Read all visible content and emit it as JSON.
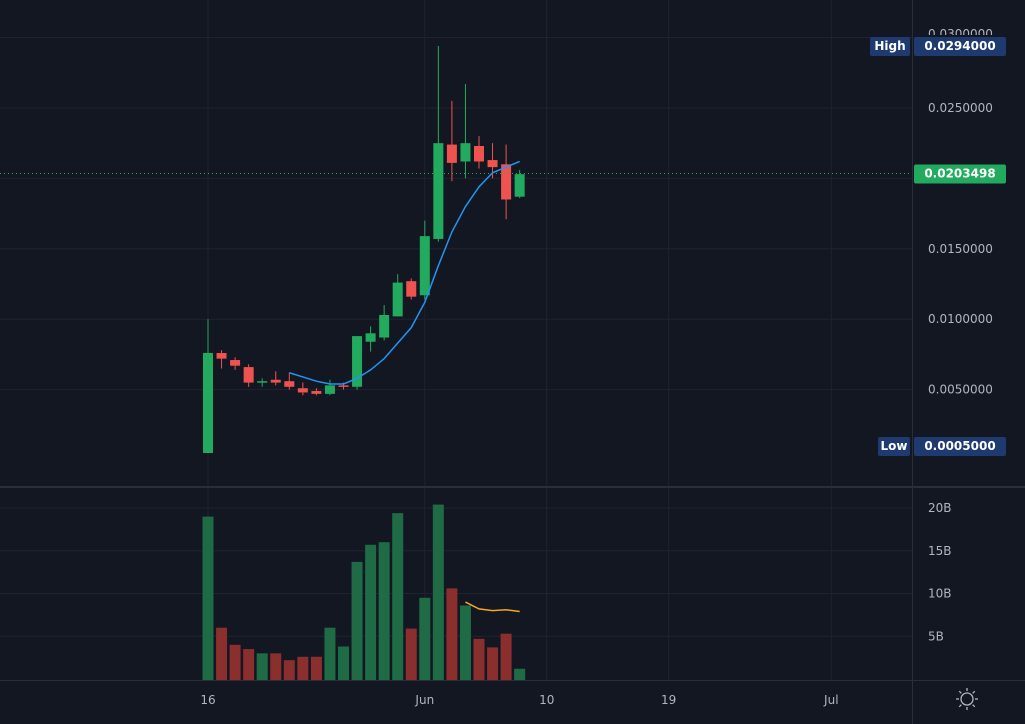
{
  "colors": {
    "background": "#131722",
    "grid": "#1f2230",
    "axis_border": "#2a2e39",
    "up": "#26a69a",
    "up_body": "#22ab5e",
    "down": "#ef5350",
    "vol_up": "#1e6b46",
    "vol_down": "#8a2e2e",
    "ma_price": "#2196f3",
    "ma_volume": "#f5a623",
    "label_bg": "#1e3a6e",
    "last_price_bg": "#22ab5e",
    "last_price_line": "#22ab5e"
  },
  "icons": {
    "settings": "sun-settings-icon"
  },
  "chart_data": [
    {
      "type": "candlestick",
      "name": "price",
      "ylim": [
        0.0,
        0.03
      ],
      "y_ticks": [
        "0.0050000",
        "0.0100000",
        "0.0150000",
        "0.0250000"
      ],
      "top_tick_partial": "0.0300000",
      "high_label": "High",
      "high_value": "0.0294000",
      "low_label": "Low",
      "low_value": "0.0005000",
      "last_price": "0.0203498",
      "last_price_value": 0.0203498,
      "x_ticks": [
        {
          "label": "16",
          "day": 0
        },
        {
          "label": "Jun",
          "day": 16
        },
        {
          "label": "10",
          "day": 25
        },
        {
          "label": "19",
          "day": 34
        },
        {
          "label": "Jul",
          "day": 46
        }
      ],
      "candles": [
        {
          "day": 0,
          "o": 0.0005,
          "h": 0.01,
          "l": 0.0005,
          "c": 0.0076
        },
        {
          "day": 1,
          "o": 0.0076,
          "h": 0.0078,
          "l": 0.0065,
          "c": 0.0072
        },
        {
          "day": 2,
          "o": 0.0071,
          "h": 0.0073,
          "l": 0.0064,
          "c": 0.0067
        },
        {
          "day": 3,
          "o": 0.0066,
          "h": 0.0068,
          "l": 0.0052,
          "c": 0.0055
        },
        {
          "day": 4,
          "o": 0.0055,
          "h": 0.0058,
          "l": 0.0052,
          "c": 0.0056
        },
        {
          "day": 5,
          "o": 0.0057,
          "h": 0.0063,
          "l": 0.0053,
          "c": 0.0055
        },
        {
          "day": 6,
          "o": 0.0056,
          "h": 0.0062,
          "l": 0.005,
          "c": 0.0052
        },
        {
          "day": 7,
          "o": 0.0051,
          "h": 0.0055,
          "l": 0.0046,
          "c": 0.0048
        },
        {
          "day": 8,
          "o": 0.0049,
          "h": 0.0051,
          "l": 0.0046,
          "c": 0.0047
        },
        {
          "day": 9,
          "o": 0.0047,
          "h": 0.0057,
          "l": 0.0046,
          "c": 0.0053
        },
        {
          "day": 10,
          "o": 0.0053,
          "h": 0.0055,
          "l": 0.005,
          "c": 0.0052
        },
        {
          "day": 11,
          "o": 0.0052,
          "h": 0.0088,
          "l": 0.005,
          "c": 0.0088
        },
        {
          "day": 12,
          "o": 0.0084,
          "h": 0.0095,
          "l": 0.0077,
          "c": 0.009
        },
        {
          "day": 13,
          "o": 0.0087,
          "h": 0.011,
          "l": 0.0085,
          "c": 0.0103
        },
        {
          "day": 14,
          "o": 0.0102,
          "h": 0.0132,
          "l": 0.0102,
          "c": 0.0126
        },
        {
          "day": 15,
          "o": 0.0127,
          "h": 0.0129,
          "l": 0.0114,
          "c": 0.0116
        },
        {
          "day": 16,
          "o": 0.0117,
          "h": 0.017,
          "l": 0.0114,
          "c": 0.0159
        },
        {
          "day": 17,
          "o": 0.0157,
          "h": 0.0294,
          "l": 0.0155,
          "c": 0.0225
        },
        {
          "day": 18,
          "o": 0.0224,
          "h": 0.0255,
          "l": 0.0198,
          "c": 0.0211
        },
        {
          "day": 19,
          "o": 0.0212,
          "h": 0.0267,
          "l": 0.02,
          "c": 0.0225
        },
        {
          "day": 20,
          "o": 0.0223,
          "h": 0.023,
          "l": 0.0207,
          "c": 0.0212
        },
        {
          "day": 21,
          "o": 0.0213,
          "h": 0.0225,
          "l": 0.02,
          "c": 0.0208
        },
        {
          "day": 22,
          "o": 0.021,
          "h": 0.0224,
          "l": 0.0171,
          "c": 0.0185
        },
        {
          "day": 23,
          "o": 0.0187,
          "h": 0.0206,
          "l": 0.0186,
          "c": 0.0203
        }
      ],
      "moving_average": [
        {
          "day": 6,
          "v": 0.0062
        },
        {
          "day": 7,
          "v": 0.0059
        },
        {
          "day": 8,
          "v": 0.0056
        },
        {
          "day": 9,
          "v": 0.0054
        },
        {
          "day": 10,
          "v": 0.0054
        },
        {
          "day": 11,
          "v": 0.0058
        },
        {
          "day": 12,
          "v": 0.0064
        },
        {
          "day": 13,
          "v": 0.0072
        },
        {
          "day": 14,
          "v": 0.0083
        },
        {
          "day": 15,
          "v": 0.0094
        },
        {
          "day": 16,
          "v": 0.0112
        },
        {
          "day": 17,
          "v": 0.0138
        },
        {
          "day": 18,
          "v": 0.0162
        },
        {
          "day": 19,
          "v": 0.018
        },
        {
          "day": 20,
          "v": 0.0194
        },
        {
          "day": 21,
          "v": 0.0204
        },
        {
          "day": 22,
          "v": 0.0208
        },
        {
          "day": 23,
          "v": 0.0212
        }
      ]
    },
    {
      "type": "bar",
      "name": "volume",
      "unit": "B",
      "ylim": [
        0,
        22
      ],
      "y_ticks": [
        "5B",
        "10B",
        "15B",
        "20B"
      ],
      "y_tick_values": [
        5,
        10,
        15,
        20
      ],
      "bars": [
        {
          "day": 0,
          "v": 19.0,
          "up": true
        },
        {
          "day": 1,
          "v": 6.0,
          "up": false
        },
        {
          "day": 2,
          "v": 4.0,
          "up": false
        },
        {
          "day": 3,
          "v": 3.5,
          "up": false
        },
        {
          "day": 4,
          "v": 3.0,
          "up": true
        },
        {
          "day": 5,
          "v": 3.0,
          "up": false
        },
        {
          "day": 6,
          "v": 2.2,
          "up": false
        },
        {
          "day": 7,
          "v": 2.6,
          "up": false
        },
        {
          "day": 8,
          "v": 2.6,
          "up": false
        },
        {
          "day": 9,
          "v": 6.0,
          "up": true
        },
        {
          "day": 10,
          "v": 3.8,
          "up": true
        },
        {
          "day": 11,
          "v": 13.7,
          "up": true
        },
        {
          "day": 12,
          "v": 15.7,
          "up": true
        },
        {
          "day": 13,
          "v": 16.0,
          "up": true
        },
        {
          "day": 14,
          "v": 19.4,
          "up": true
        },
        {
          "day": 15,
          "v": 5.9,
          "up": false
        },
        {
          "day": 16,
          "v": 9.5,
          "up": true
        },
        {
          "day": 17,
          "v": 20.4,
          "up": true
        },
        {
          "day": 18,
          "v": 10.6,
          "up": false
        },
        {
          "day": 19,
          "v": 8.6,
          "up": true
        },
        {
          "day": 20,
          "v": 4.7,
          "up": false
        },
        {
          "day": 21,
          "v": 3.7,
          "up": false
        },
        {
          "day": 22,
          "v": 5.3,
          "up": false
        },
        {
          "day": 23,
          "v": 1.2,
          "up": true
        }
      ],
      "moving_average": [
        {
          "day": 19,
          "v": 9.0
        },
        {
          "day": 20,
          "v": 8.2
        },
        {
          "day": 21,
          "v": 8.0
        },
        {
          "day": 22,
          "v": 8.1
        },
        {
          "day": 23,
          "v": 7.9
        }
      ]
    }
  ]
}
